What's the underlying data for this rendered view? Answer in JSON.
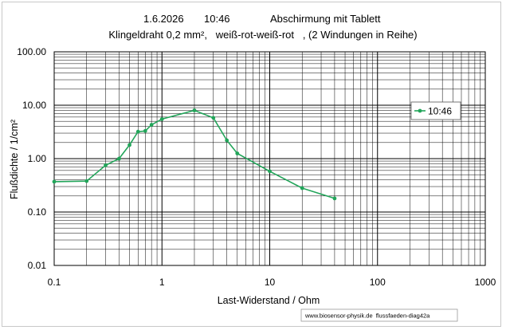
{
  "chart_data": {
    "type": "line",
    "title_line1": {
      "date": "1.6.2026",
      "time": "10:46",
      "text": "Abschirmung mit Tablett"
    },
    "title_line2": "Klingeldraht 0,2 mm²,   weiß-rot-weiß-rot   , (2 Windungen in Reihe)",
    "xlabel": "Last-Widerstand  / Ohm",
    "ylabel": "Flußdichte / 1/cm²",
    "x_scale": "log",
    "y_scale": "log",
    "xlim": [
      0.1,
      1000
    ],
    "ylim": [
      0.01,
      100
    ],
    "x_ticks": [
      "0.1",
      "1",
      "10",
      "100",
      "1000"
    ],
    "y_ticks": [
      "100.00",
      "10.00",
      "1.00",
      "0.10",
      "0.01"
    ],
    "grid": true,
    "legend_position": "right",
    "series": [
      {
        "name": "10:46",
        "color": "#22a55a",
        "x": [
          0.1,
          0.2,
          0.3,
          0.4,
          0.5,
          0.6,
          0.7,
          0.8,
          1,
          2,
          3,
          4,
          5,
          10,
          20,
          40
        ],
        "y": [
          0.37,
          0.38,
          0.75,
          1.0,
          1.8,
          3.2,
          3.3,
          4.3,
          5.5,
          8.0,
          5.8,
          2.2,
          1.25,
          0.58,
          0.28,
          0.18
        ]
      }
    ],
    "footer": "www.biosensor-physik.de  flussfaeden-diag42a"
  }
}
